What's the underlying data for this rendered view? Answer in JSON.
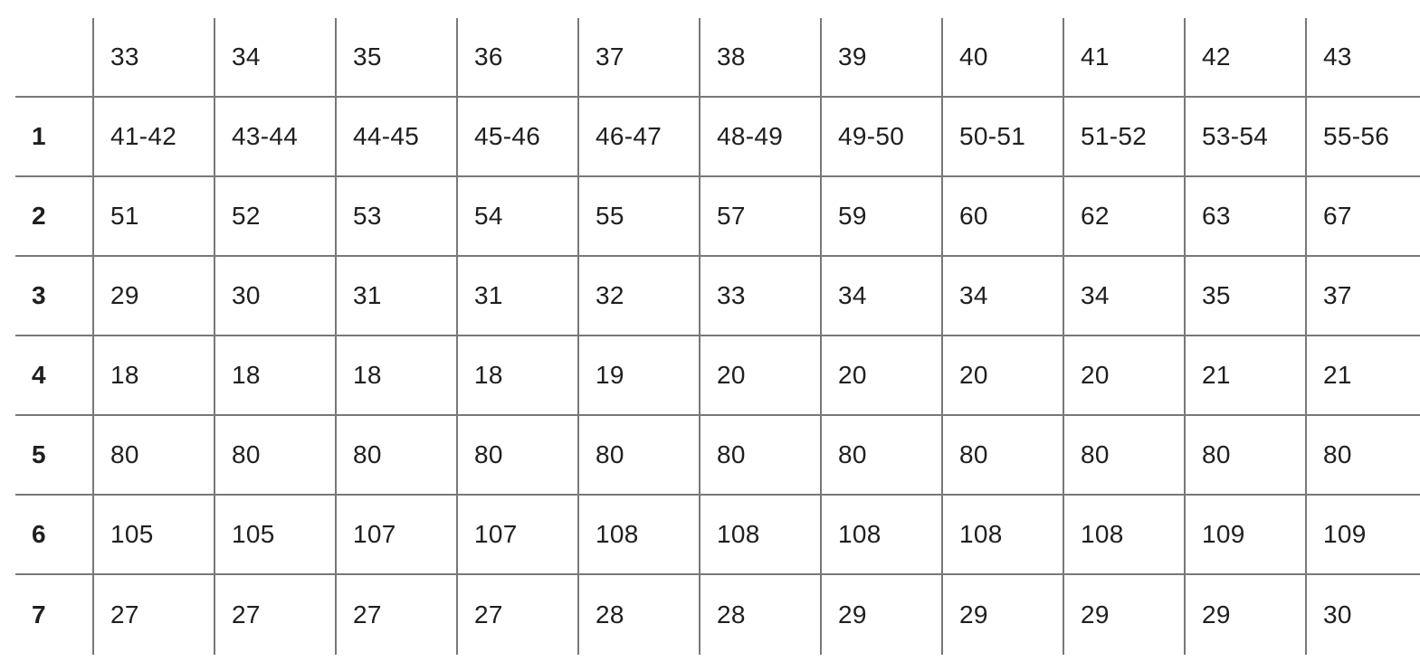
{
  "chart_data": {
    "type": "table",
    "corner_label": "",
    "column_headers": [
      "33",
      "34",
      "35",
      "36",
      "37",
      "38",
      "39",
      "40",
      "41",
      "42",
      "43"
    ],
    "rows": [
      {
        "label": "1",
        "values": [
          "41-42",
          "43-44",
          "44-45",
          "45-46",
          "46-47",
          "48-49",
          "49-50",
          "50-51",
          "51-52",
          "53-54",
          "55-56"
        ]
      },
      {
        "label": "2",
        "values": [
          "51",
          "52",
          "53",
          "54",
          "55",
          "57",
          "59",
          "60",
          "62",
          "63",
          "67"
        ]
      },
      {
        "label": "3",
        "values": [
          "29",
          "30",
          "31",
          "31",
          "32",
          "33",
          "34",
          "34",
          "34",
          "35",
          "37"
        ]
      },
      {
        "label": "4",
        "values": [
          "18",
          "18",
          "18",
          "18",
          "19",
          "20",
          "20",
          "20",
          "20",
          "21",
          "21"
        ]
      },
      {
        "label": "5",
        "values": [
          "80",
          "80",
          "80",
          "80",
          "80",
          "80",
          "80",
          "80",
          "80",
          "80",
          "80"
        ]
      },
      {
        "label": "6",
        "values": [
          "105",
          "105",
          "107",
          "107",
          "108",
          "108",
          "108",
          "108",
          "108",
          "109",
          "109"
        ]
      },
      {
        "label": "7",
        "values": [
          "27",
          "27",
          "27",
          "27",
          "28",
          "28",
          "29",
          "29",
          "29",
          "29",
          "30"
        ]
      }
    ],
    "layout_hints": {
      "grid": "on",
      "outer_borders": "none",
      "first_column_bold": true,
      "right_and_bottom_cropped": true
    }
  },
  "colors": {
    "grid_line": "#787878",
    "text": "#1f1f1f",
    "background": "#ffffff"
  }
}
